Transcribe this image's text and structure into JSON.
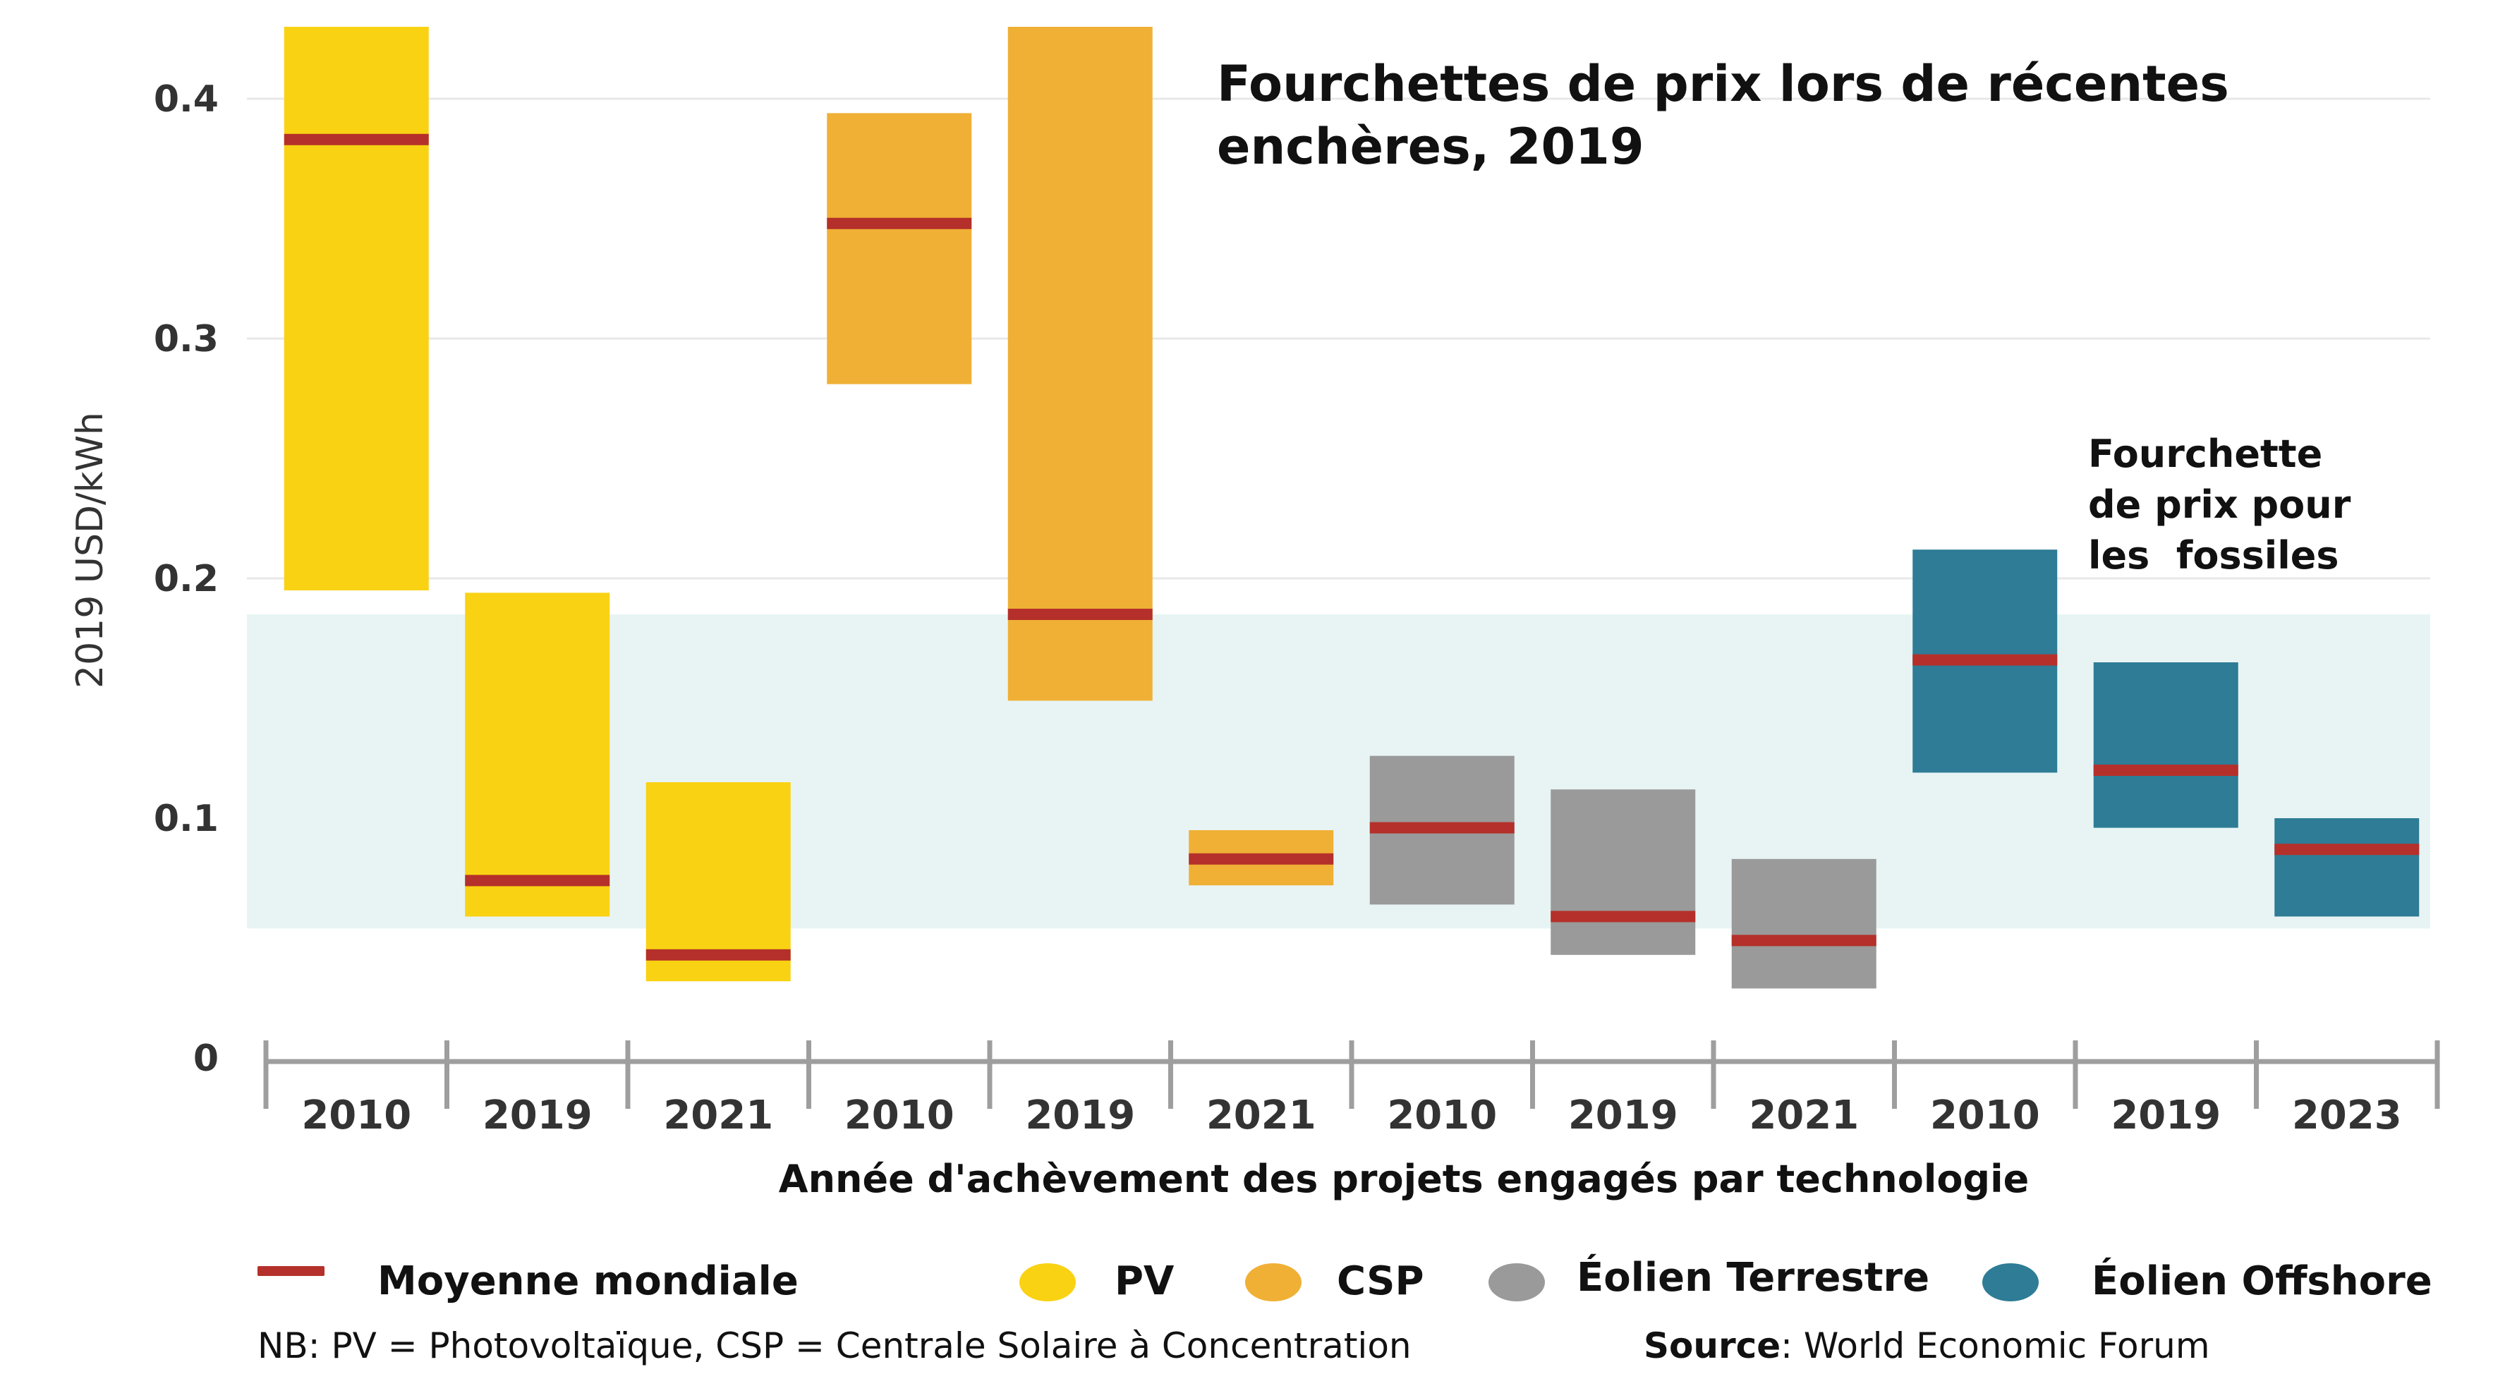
{
  "chart_data": {
    "type": "floating-bar",
    "title": "Fourchettes de prix lors de récentes enchères, 2019",
    "ylabel": "2019 USD/kWh",
    "xlabel": "Année d'achèvement des projets engagés par technologie",
    "ylim": [
      0,
      0.43
    ],
    "yticks": [
      {
        "value": 0,
        "label": "0"
      },
      {
        "value": 0.1,
        "label": "0.1"
      },
      {
        "value": 0.2,
        "label": "0.2"
      },
      {
        "value": 0.3,
        "label": "0.3"
      },
      {
        "value": 0.4,
        "label": "0.4"
      }
    ],
    "fossil_band": {
      "low": 0.054,
      "high": 0.185,
      "label_lines": [
        "Fourchette",
        "de prix pour",
        "les  fossiles"
      ]
    },
    "series": [
      {
        "name": "PV",
        "color": "#F9D213"
      },
      {
        "name": "CSP",
        "color": "#EFB035"
      },
      {
        "name": "Éolien Terrestre",
        "color": "#9A9A9A"
      },
      {
        "name": "Éolien Offshore",
        "color": "#2E7C96"
      }
    ],
    "bars": [
      {
        "category": "2010",
        "series": "PV",
        "low": 0.195,
        "high": 0.43,
        "mean": 0.383
      },
      {
        "category": "2019",
        "series": "PV",
        "low": 0.059,
        "high": 0.194,
        "mean": 0.074
      },
      {
        "category": "2021",
        "series": "PV",
        "low": 0.032,
        "high": 0.115,
        "mean": 0.043
      },
      {
        "category": "2010",
        "series": "CSP",
        "low": 0.281,
        "high": 0.394,
        "mean": 0.348
      },
      {
        "category": "2019",
        "series": "CSP",
        "low": 0.149,
        "high": 0.43,
        "mean": 0.185
      },
      {
        "category": "2021",
        "series": "CSP",
        "low": 0.072,
        "high": 0.095,
        "mean": 0.083
      },
      {
        "category": "2010",
        "series": "Éolien Terrestre",
        "low": 0.064,
        "high": 0.126,
        "mean": 0.096
      },
      {
        "category": "2019",
        "series": "Éolien Terrestre",
        "low": 0.043,
        "high": 0.112,
        "mean": 0.059
      },
      {
        "category": "2021",
        "series": "Éolien Terrestre",
        "low": 0.029,
        "high": 0.083,
        "mean": 0.049
      },
      {
        "category": "2010",
        "series": "Éolien Offshore",
        "low": 0.119,
        "high": 0.212,
        "mean": 0.166
      },
      {
        "category": "2019",
        "series": "Éolien Offshore",
        "low": 0.096,
        "high": 0.165,
        "mean": 0.12
      },
      {
        "category": "2023",
        "series": "Éolien Offshore",
        "low": 0.059,
        "high": 0.1,
        "mean": 0.087
      }
    ],
    "mean_color": "#B5302A",
    "band_color": "#E8F4F4",
    "grid": true
  },
  "legend": {
    "mean_label": "Moyenne mondiale",
    "items": [
      "PV",
      "CSP",
      "Éolien Terrestre",
      "Éolien Offshore"
    ]
  },
  "footnote": {
    "nb": "NB: PV = Photovoltaïque, CSP = Centrale Solaire à Concentration",
    "source_label": "Source",
    "source_value": ": World Economic Forum"
  }
}
